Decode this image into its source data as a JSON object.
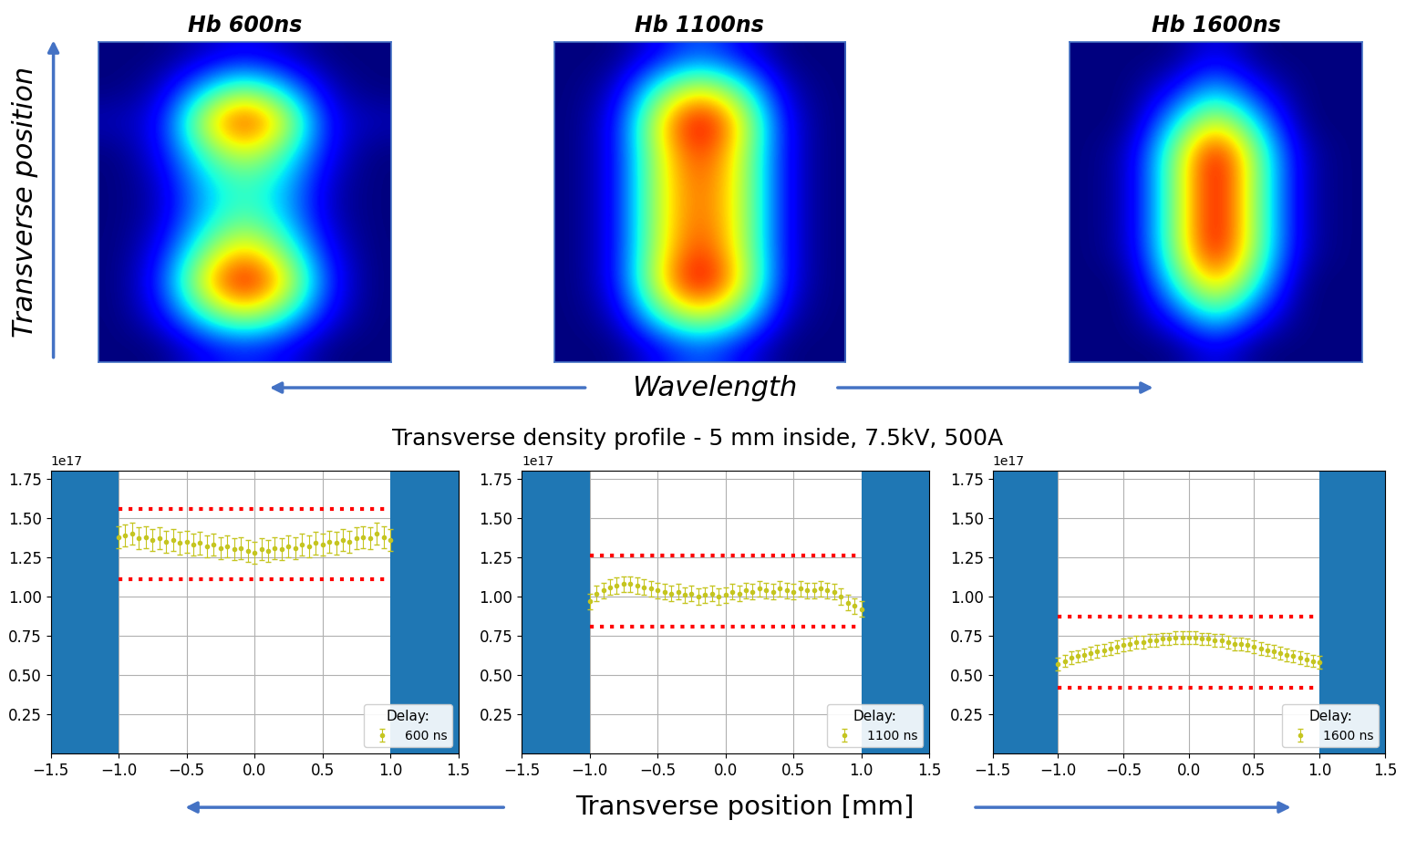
{
  "images": {
    "y_label": "Transverse position",
    "x_label": "Wavelength",
    "panels": [
      {
        "title": "Hb 600ns",
        "cells": [
          [
            0,
            0,
            0.05,
            0.1,
            0.05,
            0,
            0
          ],
          [
            0,
            0.05,
            0.3,
            0.5,
            0.3,
            0.05,
            0
          ],
          [
            0.05,
            0.1,
            0.6,
            0.9,
            0.6,
            0.1,
            0.05
          ],
          [
            0,
            0.1,
            0.4,
            0.6,
            0.4,
            0.1,
            0
          ],
          [
            0,
            0.05,
            0.3,
            0.4,
            0.3,
            0.05,
            0
          ],
          [
            0,
            0.05,
            0.3,
            0.45,
            0.3,
            0.05,
            0
          ],
          [
            0,
            0.1,
            0.45,
            0.7,
            0.45,
            0.1,
            0
          ],
          [
            0,
            0.15,
            0.65,
            0.95,
            0.65,
            0.15,
            0
          ],
          [
            0,
            0.1,
            0.4,
            0.6,
            0.4,
            0.1,
            0
          ],
          [
            0,
            0,
            0.1,
            0.15,
            0.1,
            0,
            0
          ]
        ]
      },
      {
        "title": "Hb 1100ns",
        "cells": [
          [
            0,
            0,
            0.1,
            0.2,
            0.1,
            0,
            0
          ],
          [
            0,
            0.05,
            0.4,
            0.6,
            0.4,
            0.05,
            0
          ],
          [
            0,
            0.1,
            0.6,
            0.9,
            0.6,
            0.1,
            0
          ],
          [
            0,
            0.1,
            0.55,
            0.8,
            0.55,
            0.1,
            0
          ],
          [
            0,
            0.1,
            0.55,
            0.75,
            0.55,
            0.1,
            0
          ],
          [
            0,
            0.1,
            0.55,
            0.75,
            0.55,
            0.1,
            0
          ],
          [
            0,
            0.1,
            0.55,
            0.8,
            0.55,
            0.1,
            0
          ],
          [
            0,
            0.1,
            0.6,
            0.9,
            0.6,
            0.1,
            0
          ],
          [
            0,
            0.05,
            0.4,
            0.6,
            0.4,
            0.05,
            0
          ],
          [
            0,
            0,
            0.1,
            0.2,
            0.1,
            0,
            0
          ]
        ]
      },
      {
        "title": "Hb 1600ns",
        "cells": [
          [
            0,
            0,
            0,
            0.1,
            0,
            0,
            0
          ],
          [
            0,
            0,
            0.1,
            0.3,
            0.1,
            0,
            0
          ],
          [
            0,
            0,
            0.3,
            0.6,
            0.3,
            0,
            0
          ],
          [
            0,
            0.05,
            0.45,
            0.9,
            0.45,
            0.05,
            0
          ],
          [
            0,
            0.05,
            0.45,
            0.9,
            0.45,
            0.05,
            0
          ],
          [
            0,
            0.05,
            0.45,
            0.9,
            0.45,
            0.05,
            0
          ],
          [
            0,
            0.05,
            0.45,
            0.9,
            0.45,
            0.05,
            0
          ],
          [
            0,
            0,
            0.35,
            0.7,
            0.35,
            0,
            0
          ],
          [
            0,
            0,
            0.15,
            0.4,
            0.15,
            0,
            0
          ],
          [
            0,
            0,
            0,
            0.1,
            0,
            0,
            0
          ]
        ]
      }
    ]
  },
  "suptitle": "Transverse density profile - 5 mm inside, 7.5kV, 500A",
  "x_label": "Transverse position [mm]",
  "chart_data": [
    {
      "type": "scatter",
      "y_scale_label": "1e17",
      "xlim": [
        -1.5,
        1.5
      ],
      "ylim": [
        0,
        1.8
      ],
      "xticks": [
        {
          "value": -1.5,
          "label": "−1.5"
        },
        {
          "value": -1.0,
          "label": "−1.0"
        },
        {
          "value": -0.5,
          "label": "−0.5"
        },
        0.0,
        0.5,
        1.0,
        1.5
      ],
      "yticks": [
        0.25,
        {
          "value": 0.5,
          "label": "0.50"
        },
        0.75,
        {
          "value": 1.0,
          "label": "1.00"
        },
        1.25,
        {
          "value": 1.5,
          "label": "1.50"
        },
        1.75
      ],
      "grid": true,
      "legend": "lower right",
      "legend_title": "Delay:",
      "shaded_regions": [
        [
          -1.5,
          -1.0
        ],
        [
          1.0,
          1.5
        ]
      ],
      "shaded_color": "#1f77b4",
      "bounds": {
        "x": [
          -1.0,
          1.0
        ],
        "y": [
          1.11,
          1.56
        ],
        "color": "#ff0000",
        "line_style": "dotted"
      },
      "x": [
        -1.0,
        -0.95,
        -0.9,
        -0.85,
        -0.8,
        -0.75,
        -0.7,
        -0.65,
        -0.6,
        -0.55,
        -0.5,
        -0.45,
        -0.4,
        -0.35,
        -0.3,
        -0.25,
        -0.2,
        -0.15,
        -0.1,
        -0.05,
        0.0,
        0.05,
        0.1,
        0.15,
        0.2,
        0.25,
        0.3,
        0.35,
        0.4,
        0.45,
        0.5,
        0.55,
        0.6,
        0.65,
        0.7,
        0.75,
        0.8,
        0.85,
        0.9,
        0.95,
        1.0
      ],
      "series": [
        {
          "name": "600 ns",
          "color": "#c5c520",
          "marker": "o",
          "error": 0.07,
          "values": [
            1.38,
            1.39,
            1.4,
            1.37,
            1.38,
            1.36,
            1.37,
            1.35,
            1.36,
            1.34,
            1.35,
            1.33,
            1.34,
            1.32,
            1.33,
            1.31,
            1.32,
            1.3,
            1.31,
            1.29,
            1.28,
            1.3,
            1.29,
            1.31,
            1.3,
            1.32,
            1.31,
            1.33,
            1.32,
            1.34,
            1.33,
            1.35,
            1.34,
            1.36,
            1.35,
            1.37,
            1.38,
            1.37,
            1.4,
            1.38,
            1.36
          ]
        }
      ]
    },
    {
      "type": "scatter",
      "y_scale_label": "1e17",
      "xlim": [
        -1.5,
        1.5
      ],
      "ylim": [
        0,
        1.8
      ],
      "xticks": [
        {
          "value": -1.5,
          "label": "−1.5"
        },
        {
          "value": -1.0,
          "label": "−1.0"
        },
        {
          "value": -0.5,
          "label": "−0.5"
        },
        0.0,
        0.5,
        1.0,
        1.5
      ],
      "yticks": [
        0.25,
        {
          "value": 0.5,
          "label": "0.50"
        },
        0.75,
        {
          "value": 1.0,
          "label": "1.00"
        },
        1.25,
        {
          "value": 1.5,
          "label": "1.50"
        },
        1.75
      ],
      "grid": true,
      "legend": "lower right",
      "legend_title": "Delay:",
      "shaded_regions": [
        [
          -1.5,
          -1.0
        ],
        [
          1.0,
          1.5
        ]
      ],
      "shaded_color": "#1f77b4",
      "bounds": {
        "x": [
          -1.0,
          1.0
        ],
        "y": [
          0.81,
          1.26
        ],
        "color": "#ff0000",
        "line_style": "dotted"
      },
      "x": [
        -1.0,
        -0.95,
        -0.9,
        -0.85,
        -0.8,
        -0.75,
        -0.7,
        -0.65,
        -0.6,
        -0.55,
        -0.5,
        -0.45,
        -0.4,
        -0.35,
        -0.3,
        -0.25,
        -0.2,
        -0.15,
        -0.1,
        -0.05,
        0.0,
        0.05,
        0.1,
        0.15,
        0.2,
        0.25,
        0.3,
        0.35,
        0.4,
        0.45,
        0.5,
        0.55,
        0.6,
        0.65,
        0.7,
        0.75,
        0.8,
        0.85,
        0.9,
        0.95,
        1.0
      ],
      "series": [
        {
          "name": "1100 ns",
          "color": "#c5c520",
          "marker": "o",
          "error": 0.05,
          "values": [
            0.97,
            1.02,
            1.04,
            1.06,
            1.07,
            1.08,
            1.08,
            1.07,
            1.06,
            1.05,
            1.04,
            1.03,
            1.02,
            1.03,
            1.01,
            1.02,
            1.0,
            1.01,
            1.02,
            1.0,
            1.01,
            1.03,
            1.02,
            1.04,
            1.03,
            1.05,
            1.04,
            1.03,
            1.05,
            1.04,
            1.03,
            1.05,
            1.04,
            1.04,
            1.05,
            1.04,
            1.03,
            1.0,
            0.96,
            0.94,
            0.92
          ]
        }
      ]
    },
    {
      "type": "scatter",
      "y_scale_label": "1e17",
      "xlim": [
        -1.5,
        1.5
      ],
      "ylim": [
        0,
        1.8
      ],
      "xticks": [
        {
          "value": -1.5,
          "label": "−1.5"
        },
        {
          "value": -1.0,
          "label": "−1.0"
        },
        {
          "value": -0.5,
          "label": "−0.5"
        },
        0.0,
        0.5,
        1.0,
        1.5
      ],
      "yticks": [
        0.25,
        {
          "value": 0.5,
          "label": "0.50"
        },
        0.75,
        {
          "value": 1.0,
          "label": "1.00"
        },
        1.25,
        {
          "value": 1.5,
          "label": "1.50"
        },
        1.75
      ],
      "grid": true,
      "legend": "lower right",
      "legend_title": "Delay:",
      "shaded_regions": [
        [
          -1.5,
          -1.0
        ],
        [
          1.0,
          1.5
        ]
      ],
      "shaded_color": "#1f77b4",
      "bounds": {
        "x": [
          -1.0,
          1.0
        ],
        "y": [
          0.42,
          0.87
        ],
        "color": "#ff0000",
        "line_style": "dotted"
      },
      "x": [
        -1.0,
        -0.95,
        -0.9,
        -0.85,
        -0.8,
        -0.75,
        -0.7,
        -0.65,
        -0.6,
        -0.55,
        -0.5,
        -0.45,
        -0.4,
        -0.35,
        -0.3,
        -0.25,
        -0.2,
        -0.15,
        -0.1,
        -0.05,
        0.0,
        0.05,
        0.1,
        0.15,
        0.2,
        0.25,
        0.3,
        0.35,
        0.4,
        0.45,
        0.5,
        0.55,
        0.6,
        0.65,
        0.7,
        0.75,
        0.8,
        0.85,
        0.9,
        0.95,
        1.0
      ],
      "series": [
        {
          "name": "1600 ns",
          "color": "#c5c520",
          "marker": "o",
          "error": 0.04,
          "values": [
            0.57,
            0.59,
            0.61,
            0.62,
            0.63,
            0.64,
            0.65,
            0.66,
            0.67,
            0.68,
            0.69,
            0.7,
            0.71,
            0.71,
            0.72,
            0.72,
            0.73,
            0.73,
            0.74,
            0.74,
            0.74,
            0.74,
            0.73,
            0.73,
            0.72,
            0.72,
            0.71,
            0.7,
            0.7,
            0.69,
            0.68,
            0.67,
            0.66,
            0.65,
            0.64,
            0.63,
            0.62,
            0.61,
            0.6,
            0.59,
            0.58
          ]
        }
      ]
    }
  ]
}
